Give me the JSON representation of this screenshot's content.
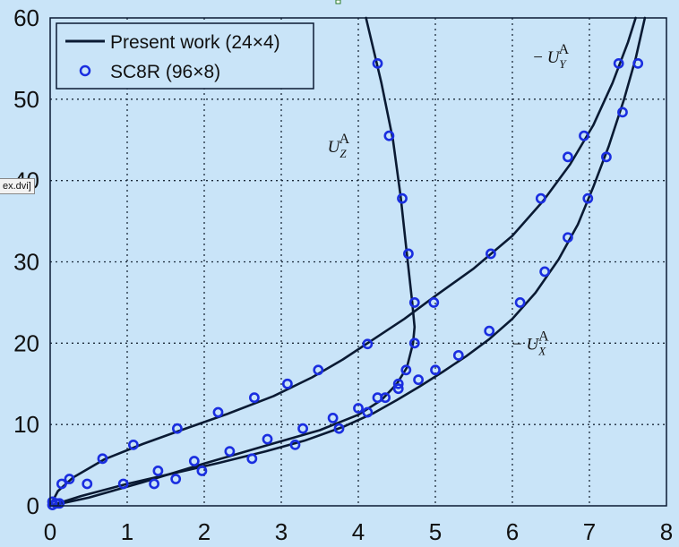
{
  "window_stub_label": "ex.dvi]",
  "chart_data": {
    "type": "line",
    "xlim": [
      0,
      8
    ],
    "ylim": [
      0,
      60
    ],
    "xticks": [
      0,
      1,
      2,
      3,
      4,
      5,
      6,
      7,
      8
    ],
    "yticks": [
      0,
      10,
      20,
      30,
      40,
      50,
      60
    ],
    "grid": true,
    "legend_position": "top-left",
    "legend": {
      "line_label": "Present work (24×4)",
      "marker_label": "SC8R (96×8)"
    },
    "colors": {
      "line": "#0a1a33",
      "marker": "#1a2ee0",
      "plot_bg": "#c9e4f8",
      "grid": "#1b2a3a"
    },
    "annotations": [
      {
        "text": "U",
        "sub": "Z",
        "sup": "A",
        "prefix": "",
        "x": 3.6,
        "y": 43.5
      },
      {
        "text": "U",
        "sub": "Y",
        "sup": "A",
        "prefix": "− ",
        "x": 6.27,
        "y": 54.5
      },
      {
        "text": "U",
        "sub": "X",
        "sup": "A",
        "prefix": "− ",
        "x": 6.0,
        "y": 19.2
      }
    ],
    "series": [
      {
        "kind": "line",
        "points": [
          [
            4.1,
            60
          ],
          [
            4.3,
            52
          ],
          [
            4.45,
            45
          ],
          [
            4.55,
            38
          ],
          [
            4.63,
            31
          ],
          [
            4.7,
            25
          ],
          [
            4.73,
            22
          ],
          [
            4.71,
            20
          ],
          [
            4.63,
            17
          ],
          [
            4.5,
            15
          ],
          [
            4.3,
            13
          ],
          [
            4.0,
            11.2
          ],
          [
            3.5,
            9.3
          ],
          [
            2.8,
            7.4
          ],
          [
            2.0,
            5.2
          ],
          [
            1.2,
            2.9
          ],
          [
            0.5,
            1.0
          ],
          [
            0.1,
            0.2
          ],
          [
            0,
            0
          ]
        ]
      },
      {
        "kind": "line",
        "points": [
          [
            0,
            0
          ],
          [
            0.1,
            1.8
          ],
          [
            0.3,
            3.5
          ],
          [
            0.7,
            5.7
          ],
          [
            1.2,
            7.6
          ],
          [
            1.7,
            9.3
          ],
          [
            2.3,
            11.3
          ],
          [
            2.9,
            13.5
          ],
          [
            3.4,
            15.8
          ],
          [
            3.8,
            18
          ],
          [
            4.2,
            20.5
          ],
          [
            4.6,
            23
          ],
          [
            5.0,
            25.8
          ],
          [
            5.5,
            29.2
          ],
          [
            6.0,
            33.2
          ],
          [
            6.4,
            37.5
          ],
          [
            6.75,
            42
          ],
          [
            7.05,
            46.8
          ],
          [
            7.3,
            52
          ],
          [
            7.5,
            57
          ],
          [
            7.6,
            60
          ]
        ]
      },
      {
        "kind": "line",
        "points": [
          [
            0,
            0
          ],
          [
            0.4,
            1.2
          ],
          [
            1.0,
            2.7
          ],
          [
            1.6,
            4.0
          ],
          [
            2.2,
            5.3
          ],
          [
            2.8,
            6.7
          ],
          [
            3.3,
            8.0
          ],
          [
            3.8,
            9.7
          ],
          [
            4.2,
            11.4
          ],
          [
            4.5,
            13.0
          ],
          [
            4.8,
            14.7
          ],
          [
            5.1,
            16.5
          ],
          [
            5.4,
            18.4
          ],
          [
            5.7,
            20.5
          ],
          [
            6.0,
            23.0
          ],
          [
            6.3,
            26.2
          ],
          [
            6.6,
            30.3
          ],
          [
            6.85,
            34.6
          ],
          [
            7.05,
            39.2
          ],
          [
            7.25,
            44.2
          ],
          [
            7.45,
            50
          ],
          [
            7.6,
            55
          ],
          [
            7.72,
            60
          ]
        ]
      },
      {
        "kind": "markers",
        "points": [
          [
            4.25,
            54.4
          ],
          [
            4.4,
            45.5
          ],
          [
            4.57,
            37.8
          ],
          [
            4.65,
            31.0
          ],
          [
            4.73,
            25.0
          ],
          [
            4.73,
            20.0
          ],
          [
            4.62,
            16.7
          ],
          [
            4.52,
            14.4
          ],
          [
            4.35,
            13.3
          ],
          [
            4.12,
            11.5
          ],
          [
            3.75,
            9.5
          ],
          [
            3.18,
            7.5
          ],
          [
            2.62,
            5.8
          ],
          [
            1.97,
            4.3
          ],
          [
            1.63,
            3.3
          ],
          [
            1.35,
            2.7
          ],
          [
            0.95,
            2.7
          ],
          [
            0.12,
            0.3
          ],
          [
            0.03,
            0.1
          ]
        ]
      },
      {
        "kind": "markers",
        "points": [
          [
            0.03,
            0.5
          ],
          [
            0.15,
            2.7
          ],
          [
            0.25,
            3.3
          ],
          [
            0.68,
            5.8
          ],
          [
            1.08,
            7.5
          ],
          [
            1.65,
            9.5
          ],
          [
            2.18,
            11.5
          ],
          [
            2.65,
            13.3
          ],
          [
            3.08,
            15.0
          ],
          [
            3.48,
            16.7
          ],
          [
            4.12,
            19.9
          ],
          [
            4.98,
            25.0
          ],
          [
            5.72,
            31.0
          ],
          [
            6.37,
            37.8
          ],
          [
            6.72,
            42.9
          ],
          [
            6.93,
            45.5
          ],
          [
            7.38,
            54.4
          ]
        ]
      },
      {
        "kind": "markers",
        "points": [
          [
            0.08,
            0.3
          ],
          [
            0.48,
            2.7
          ],
          [
            1.4,
            4.3
          ],
          [
            1.87,
            5.5
          ],
          [
            2.33,
            6.7
          ],
          [
            2.82,
            8.2
          ],
          [
            3.28,
            9.5
          ],
          [
            3.67,
            10.8
          ],
          [
            4.0,
            12.0
          ],
          [
            4.25,
            13.3
          ],
          [
            4.52,
            15.0
          ],
          [
            4.78,
            15.5
          ],
          [
            5.0,
            16.7
          ],
          [
            5.3,
            18.5
          ],
          [
            5.7,
            21.5
          ],
          [
            6.1,
            25.0
          ],
          [
            6.42,
            28.8
          ],
          [
            6.72,
            33.0
          ],
          [
            6.98,
            37.8
          ],
          [
            7.22,
            42.9
          ],
          [
            7.43,
            48.4
          ],
          [
            7.63,
            54.4
          ]
        ]
      }
    ]
  }
}
